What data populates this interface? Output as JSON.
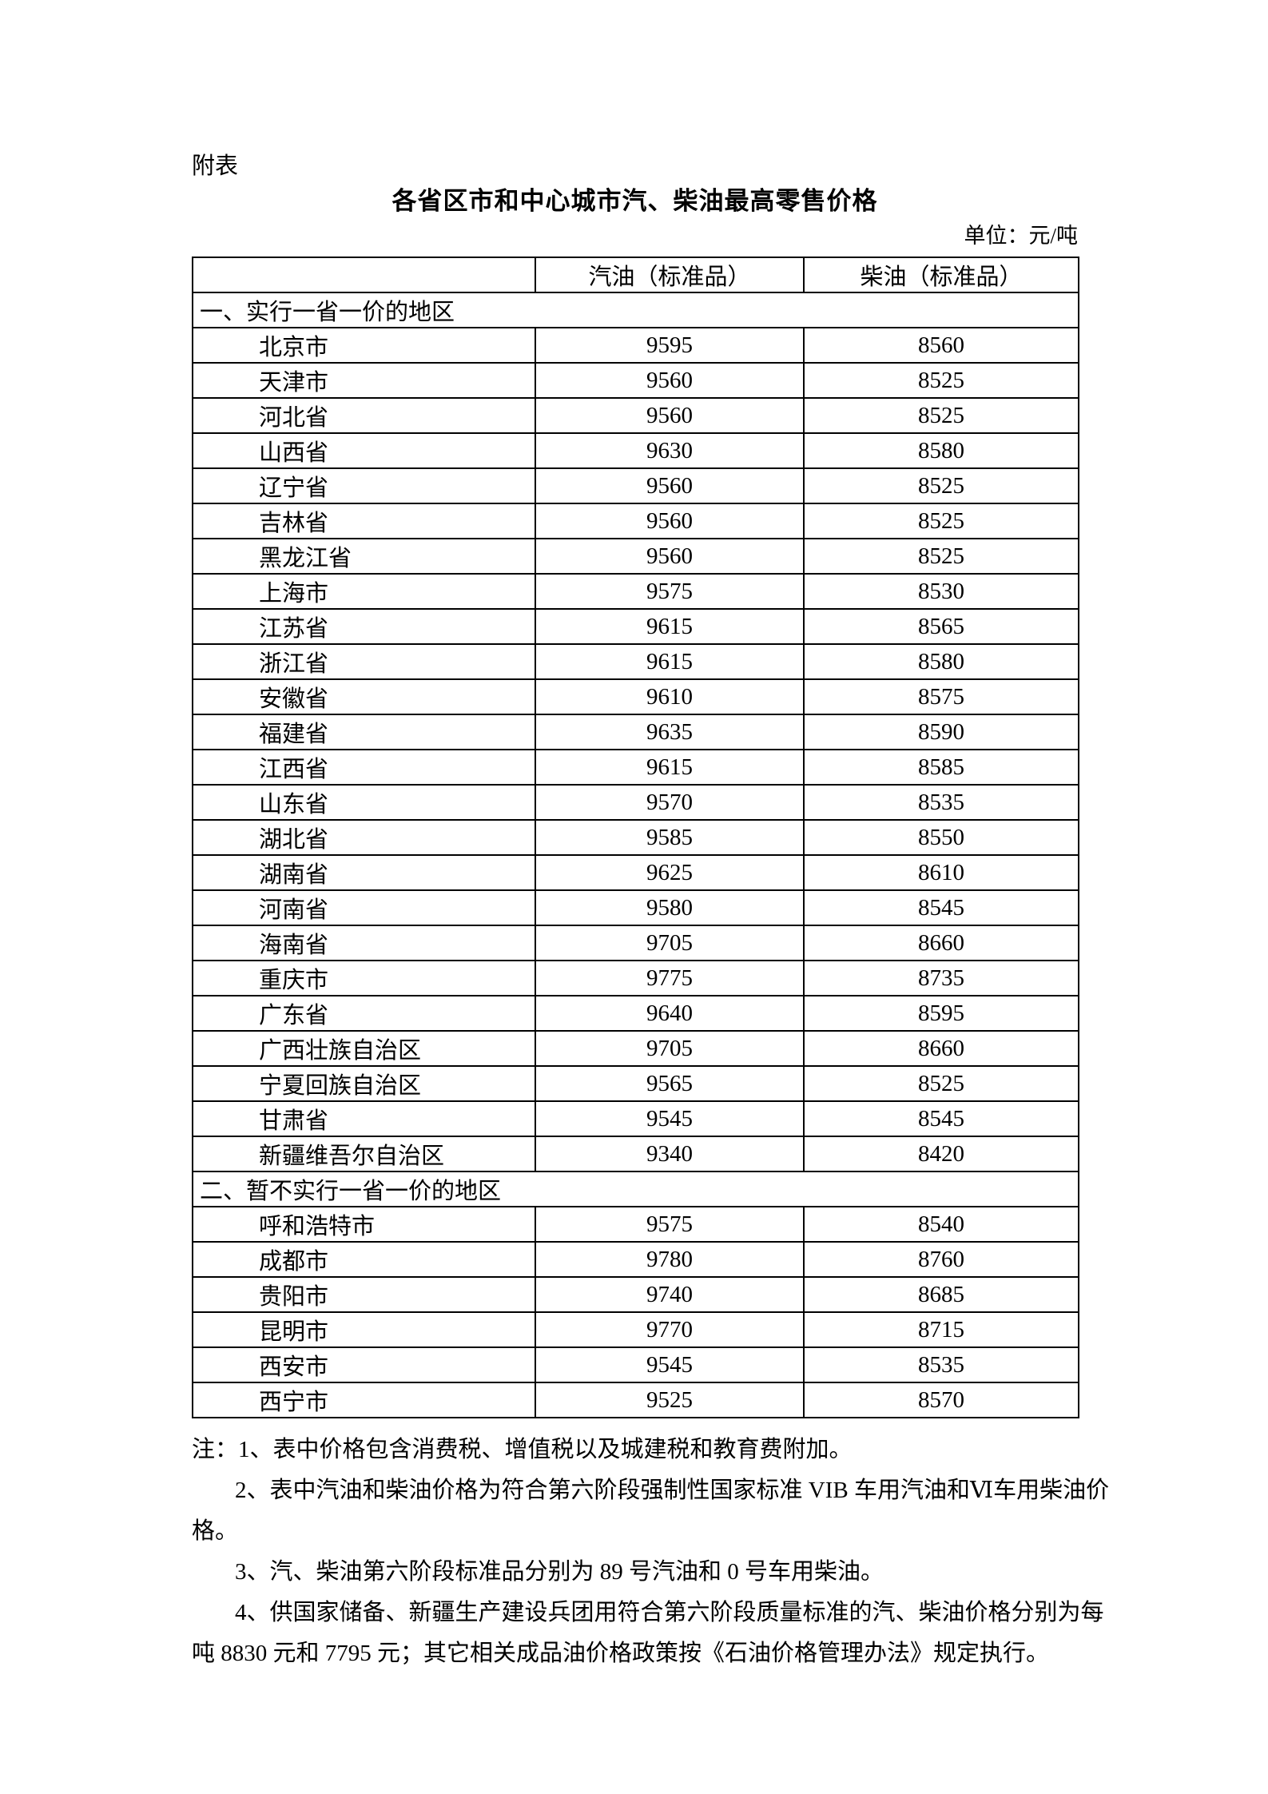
{
  "page": {
    "appendix_label": "附表",
    "title": "各省区市和中心城市汽、柴油最高零售价格",
    "unit_label": "单位：元/吨"
  },
  "colors": {
    "background": "#ffffff",
    "text": "#000000",
    "table_border": "#000000"
  },
  "table": {
    "columns": [
      "",
      "汽油（标准品）",
      "柴油（标准品）"
    ],
    "sections": [
      {
        "header": "一、实行一省一价的地区",
        "rows": [
          {
            "region": "北京市",
            "gasoline": "9595",
            "diesel": "8560"
          },
          {
            "region": "天津市",
            "gasoline": "9560",
            "diesel": "8525"
          },
          {
            "region": "河北省",
            "gasoline": "9560",
            "diesel": "8525"
          },
          {
            "region": "山西省",
            "gasoline": "9630",
            "diesel": "8580"
          },
          {
            "region": "辽宁省",
            "gasoline": "9560",
            "diesel": "8525"
          },
          {
            "region": "吉林省",
            "gasoline": "9560",
            "diesel": "8525"
          },
          {
            "region": "黑龙江省",
            "gasoline": "9560",
            "diesel": "8525"
          },
          {
            "region": "上海市",
            "gasoline": "9575",
            "diesel": "8530"
          },
          {
            "region": "江苏省",
            "gasoline": "9615",
            "diesel": "8565"
          },
          {
            "region": "浙江省",
            "gasoline": "9615",
            "diesel": "8580"
          },
          {
            "region": "安徽省",
            "gasoline": "9610",
            "diesel": "8575"
          },
          {
            "region": "福建省",
            "gasoline": "9635",
            "diesel": "8590"
          },
          {
            "region": "江西省",
            "gasoline": "9615",
            "diesel": "8585"
          },
          {
            "region": "山东省",
            "gasoline": "9570",
            "diesel": "8535"
          },
          {
            "region": "湖北省",
            "gasoline": "9585",
            "diesel": "8550"
          },
          {
            "region": "湖南省",
            "gasoline": "9625",
            "diesel": "8610"
          },
          {
            "region": "河南省",
            "gasoline": "9580",
            "diesel": "8545"
          },
          {
            "region": "海南省",
            "gasoline": "9705",
            "diesel": "8660"
          },
          {
            "region": "重庆市",
            "gasoline": "9775",
            "diesel": "8735"
          },
          {
            "region": "广东省",
            "gasoline": "9640",
            "diesel": "8595"
          },
          {
            "region": "广西壮族自治区",
            "gasoline": "9705",
            "diesel": "8660"
          },
          {
            "region": "宁夏回族自治区",
            "gasoline": "9565",
            "diesel": "8525"
          },
          {
            "region": "甘肃省",
            "gasoline": "9545",
            "diesel": "8545"
          },
          {
            "region": "新疆维吾尔自治区",
            "gasoline": "9340",
            "diesel": "8420"
          }
        ]
      },
      {
        "header": "二、暂不实行一省一价的地区",
        "rows": [
          {
            "region": "呼和浩特市",
            "gasoline": "9575",
            "diesel": "8540"
          },
          {
            "region": "成都市",
            "gasoline": "9780",
            "diesel": "8760"
          },
          {
            "region": "贵阳市",
            "gasoline": "9740",
            "diesel": "8685"
          },
          {
            "region": "昆明市",
            "gasoline": "9770",
            "diesel": "8715"
          },
          {
            "region": "西安市",
            "gasoline": "9545",
            "diesel": "8535"
          },
          {
            "region": "西宁市",
            "gasoline": "9525",
            "diesel": "8570"
          }
        ]
      }
    ]
  },
  "notes": {
    "lines": [
      {
        "indent": false,
        "text": "注：1、表中价格包含消费税、增值税以及城建税和教育费附加。"
      },
      {
        "indent": true,
        "text": "2、表中汽油和柴油价格为符合第六阶段强制性国家标准 VIB 车用汽油和Ⅵ车用柴油价"
      },
      {
        "indent": false,
        "text": "格。"
      },
      {
        "indent": true,
        "text": "3、汽、柴油第六阶段标准品分别为 89 号汽油和 0 号车用柴油。"
      },
      {
        "indent": true,
        "text": "4、供国家储备、新疆生产建设兵团用符合第六阶段质量标准的汽、柴油价格分别为每"
      },
      {
        "indent": false,
        "text": "吨 8830 元和 7795 元；其它相关成品油价格政策按《石油价格管理办法》规定执行。"
      }
    ]
  }
}
